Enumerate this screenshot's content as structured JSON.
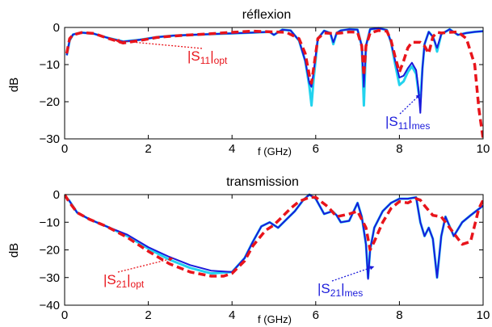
{
  "chart_data": [
    {
      "type": "line",
      "title": "réflexion",
      "xlabel": "f (GHz)",
      "ylabel": "dB",
      "xlim": [
        0,
        10
      ],
      "ylim": [
        -30,
        0
      ],
      "xticks": [
        "0",
        "2",
        "4",
        "6",
        "8",
        "10"
      ],
      "yticks": [
        "0",
        "−10",
        "−20",
        "−30"
      ],
      "grid": false,
      "annotations": [
        {
          "base": "|S",
          "sub": "11",
          "close": "|",
          "sub2": "opt",
          "color": "#e8141b",
          "points_to": [
            1.2,
            -3.5
          ]
        },
        {
          "base": "|S",
          "sub": "11",
          "close": "|",
          "sub2": "mes",
          "color": "#1a1adb",
          "points_to": [
            8.5,
            -18.0
          ]
        }
      ],
      "series": [
        {
          "role": "simulated-light",
          "color": "#22d3ee",
          "dash": "solid",
          "x": [
            0.05,
            0.12,
            0.2,
            0.4,
            0.7,
            1.0,
            1.4,
            1.8,
            2.2,
            2.6,
            3.0,
            3.5,
            4.0,
            4.5,
            4.9,
            5.0,
            5.2,
            5.4,
            5.6,
            5.75,
            5.85,
            5.9,
            5.95,
            6.05,
            6.2,
            6.35,
            6.42,
            6.5,
            6.6,
            6.8,
            7.0,
            7.1,
            7.15,
            7.2,
            7.3,
            7.5,
            7.7,
            7.8,
            7.9,
            8.0,
            8.1,
            8.2,
            8.3,
            8.4,
            8.45,
            8.5,
            8.55,
            8.6,
            8.7,
            8.8,
            8.85,
            8.9,
            9.0,
            9.2,
            9.4,
            9.6,
            9.8,
            10.0
          ],
          "y": [
            -7.5,
            -3.5,
            -1.9,
            -1.4,
            -1.7,
            -2.7,
            -3.8,
            -3.3,
            -2.6,
            -2.2,
            -2.0,
            -1.8,
            -1.6,
            -1.4,
            -1.2,
            -2.0,
            -0.6,
            -0.8,
            -3.5,
            -9.0,
            -16.0,
            -21.0,
            -14.0,
            -3.0,
            -0.9,
            -1.5,
            -4.5,
            -1.5,
            -0.8,
            -0.5,
            -0.6,
            -5.0,
            -21.0,
            -5.0,
            -0.5,
            -0.2,
            -0.7,
            -4.0,
            -10.0,
            -15.5,
            -14.5,
            -12.0,
            -10.5,
            -12.5,
            -17.0,
            -20.0,
            -11.0,
            -4.5,
            -1.2,
            -2.5,
            -4.0,
            -6.5,
            -1.8,
            -0.5,
            -2.0,
            -1.5,
            -1.2,
            -1.0
          ]
        },
        {
          "role": "measured",
          "color": "#1a1adb",
          "dash": "solid",
          "x": [
            0.05,
            0.12,
            0.2,
            0.4,
            0.7,
            1.0,
            1.4,
            1.8,
            2.2,
            2.6,
            3.0,
            3.5,
            4.0,
            4.5,
            4.9,
            5.0,
            5.2,
            5.4,
            5.6,
            5.75,
            5.85,
            5.9,
            5.95,
            6.05,
            6.2,
            6.35,
            6.42,
            6.5,
            6.6,
            6.8,
            7.0,
            7.1,
            7.15,
            7.2,
            7.3,
            7.5,
            7.7,
            7.8,
            7.9,
            8.0,
            8.1,
            8.2,
            8.3,
            8.4,
            8.45,
            8.5,
            8.55,
            8.6,
            8.7,
            8.8,
            8.85,
            8.9,
            9.0,
            9.2,
            9.4,
            9.6,
            9.8,
            10.0
          ],
          "y": [
            -7.5,
            -3.5,
            -1.9,
            -1.4,
            -1.7,
            -2.7,
            -3.8,
            -3.3,
            -2.6,
            -2.2,
            -2.0,
            -1.8,
            -1.6,
            -1.4,
            -1.2,
            -2.0,
            -0.6,
            -0.8,
            -3.5,
            -9.0,
            -15.0,
            -16.0,
            -12.0,
            -3.0,
            -0.9,
            -1.5,
            -4.0,
            -1.5,
            -0.8,
            -0.5,
            -0.6,
            -5.0,
            -16.0,
            -5.0,
            -0.5,
            -0.2,
            -0.7,
            -4.0,
            -9.0,
            -13.5,
            -13.0,
            -11.0,
            -9.5,
            -11.5,
            -16.0,
            -23.0,
            -11.0,
            -4.5,
            -1.2,
            -2.5,
            -4.0,
            -5.5,
            -1.8,
            -0.5,
            -2.0,
            -1.5,
            -1.2,
            -1.0
          ]
        },
        {
          "role": "optimized",
          "color": "#e8141b",
          "dash": "dashed",
          "x": [
            0.05,
            0.12,
            0.2,
            0.4,
            0.7,
            1.0,
            1.4,
            1.8,
            2.2,
            2.6,
            3.0,
            3.5,
            4.0,
            4.5,
            5.0,
            5.3,
            5.6,
            5.75,
            5.85,
            5.9,
            5.95,
            6.05,
            6.2,
            6.4,
            6.6,
            6.8,
            7.0,
            7.1,
            7.15,
            7.2,
            7.3,
            7.5,
            7.7,
            7.8,
            7.9,
            8.0,
            8.1,
            8.2,
            8.3,
            8.4,
            8.5,
            8.6,
            8.7,
            8.8,
            8.9,
            9.0,
            9.2,
            9.4,
            9.6,
            9.8,
            9.9,
            10.0
          ],
          "y": [
            -7.0,
            -3.0,
            -2.0,
            -1.4,
            -1.6,
            -2.8,
            -4.2,
            -3.5,
            -2.7,
            -2.3,
            -2.0,
            -1.7,
            -1.3,
            -1.0,
            -1.2,
            -1.3,
            -3.0,
            -7.0,
            -13.0,
            -15.0,
            -11.0,
            -3.0,
            -1.5,
            -1.6,
            -1.5,
            -1.2,
            -1.3,
            -5.0,
            -13.0,
            -5.0,
            -1.5,
            -0.8,
            -1.0,
            -3.5,
            -8.0,
            -12.0,
            -9.0,
            -5.5,
            -4.0,
            -4.0,
            -4.0,
            -5.0,
            -7.0,
            -2.5,
            -1.3,
            -1.5,
            -1.3,
            -1.2,
            -3.0,
            -10.0,
            -22.0,
            -30.0
          ]
        }
      ]
    },
    {
      "type": "line",
      "title": "transmission",
      "xlabel": "f (GHz)",
      "ylabel": "dB",
      "xlim": [
        0,
        10
      ],
      "ylim": [
        -40,
        0
      ],
      "xticks": [
        "0",
        "2",
        "4",
        "6",
        "8",
        "10"
      ],
      "yticks": [
        "0",
        "−10",
        "−20",
        "−30",
        "−40"
      ],
      "grid": false,
      "annotations": [
        {
          "base": "|S",
          "sub": "21",
          "close": "|",
          "sub2": "opt",
          "color": "#e8141b",
          "points_to": [
            2.6,
            -23.0
          ]
        },
        {
          "base": "|S",
          "sub": "21",
          "close": "|",
          "sub2": "mes",
          "color": "#1a1adb",
          "points_to": [
            7.4,
            -26.0
          ]
        }
      ],
      "series": [
        {
          "role": "simulated-light",
          "color": "#22d3ee",
          "dash": "solid",
          "x": [
            0.0,
            0.1,
            0.3,
            0.6,
            1.0,
            1.5,
            2.0,
            2.5,
            3.0,
            3.5,
            4.0,
            4.3,
            4.5,
            4.7,
            4.9,
            5.1,
            5.3,
            5.5,
            5.7,
            5.85,
            6.0,
            6.2,
            6.4,
            6.5,
            6.6,
            6.8,
            7.0,
            7.1,
            7.2,
            7.25,
            7.3,
            7.4,
            7.6,
            7.8,
            8.0,
            8.2,
            8.4,
            8.5,
            8.6,
            8.7,
            8.8,
            8.9,
            9.0,
            9.1,
            9.3,
            9.5,
            9.7,
            10.0
          ],
          "y": [
            -0.5,
            -2.0,
            -6.5,
            -9.0,
            -11.5,
            -15.0,
            -19.5,
            -23.5,
            -26.5,
            -28.5,
            -28.0,
            -23.0,
            -17.0,
            -11.5,
            -10.0,
            -12.0,
            -9.0,
            -6.0,
            -2.0,
            0.0,
            -1.5,
            -7.0,
            -6.0,
            -7.5,
            -10.0,
            -9.5,
            -3.0,
            -8.0,
            -18.0,
            -30.0,
            -20.0,
            -12.0,
            -6.0,
            -3.0,
            -1.5,
            -1.5,
            -1.0,
            -10.0,
            -15.0,
            -12.0,
            -16.0,
            -30.0,
            -15.0,
            -8.0,
            -15.0,
            -10.0,
            -7.5,
            -4.0
          ]
        },
        {
          "role": "measured",
          "color": "#1a1adb",
          "dash": "solid",
          "x": [
            0.0,
            0.1,
            0.3,
            0.6,
            1.0,
            1.5,
            2.0,
            2.5,
            3.0,
            3.5,
            4.0,
            4.3,
            4.5,
            4.7,
            4.9,
            5.1,
            5.3,
            5.5,
            5.7,
            5.85,
            6.0,
            6.2,
            6.4,
            6.5,
            6.6,
            6.8,
            7.0,
            7.1,
            7.2,
            7.25,
            7.3,
            7.4,
            7.6,
            7.8,
            8.0,
            8.2,
            8.4,
            8.5,
            8.6,
            8.7,
            8.8,
            8.9,
            9.0,
            9.1,
            9.3,
            9.5,
            9.7,
            10.0
          ],
          "y": [
            -0.5,
            -2.0,
            -6.5,
            -9.0,
            -11.5,
            -14.5,
            -19.0,
            -22.5,
            -25.5,
            -27.5,
            -28.0,
            -23.0,
            -17.0,
            -11.5,
            -10.0,
            -12.0,
            -9.0,
            -6.0,
            -2.0,
            0.0,
            -1.5,
            -7.0,
            -6.0,
            -7.5,
            -10.0,
            -9.5,
            -3.0,
            -8.0,
            -18.0,
            -30.5,
            -20.0,
            -12.0,
            -6.0,
            -3.0,
            -1.5,
            -1.5,
            -1.0,
            -10.0,
            -15.0,
            -12.0,
            -16.0,
            -30.0,
            -15.0,
            -8.0,
            -15.0,
            -10.0,
            -7.5,
            -4.0
          ]
        },
        {
          "role": "optimized",
          "color": "#e8141b",
          "dash": "dashed",
          "x": [
            0.0,
            0.1,
            0.3,
            0.6,
            1.0,
            1.5,
            2.0,
            2.5,
            3.0,
            3.5,
            3.8,
            4.0,
            4.3,
            4.5,
            4.8,
            5.0,
            5.2,
            5.4,
            5.6,
            5.85,
            6.0,
            6.3,
            6.5,
            6.8,
            7.0,
            7.2,
            7.3,
            7.4,
            7.6,
            7.8,
            8.0,
            8.2,
            8.4,
            8.5,
            8.6,
            8.8,
            9.0,
            9.2,
            9.5,
            9.7,
            9.9,
            10.0
          ],
          "y": [
            0.0,
            -2.5,
            -6.5,
            -9.0,
            -11.5,
            -15.5,
            -20.5,
            -25.0,
            -28.0,
            -29.5,
            -29.5,
            -28.5,
            -24.0,
            -18.5,
            -13.0,
            -11.0,
            -8.0,
            -5.0,
            -2.5,
            -1.0,
            -1.0,
            -4.5,
            -8.0,
            -7.0,
            -6.0,
            -12.0,
            -20.0,
            -17.0,
            -10.0,
            -5.0,
            -2.5,
            -3.0,
            -1.5,
            -2.0,
            -4.0,
            -7.5,
            -8.0,
            -12.0,
            -18.0,
            -17.0,
            -5.0,
            -2.0
          ]
        }
      ]
    }
  ]
}
